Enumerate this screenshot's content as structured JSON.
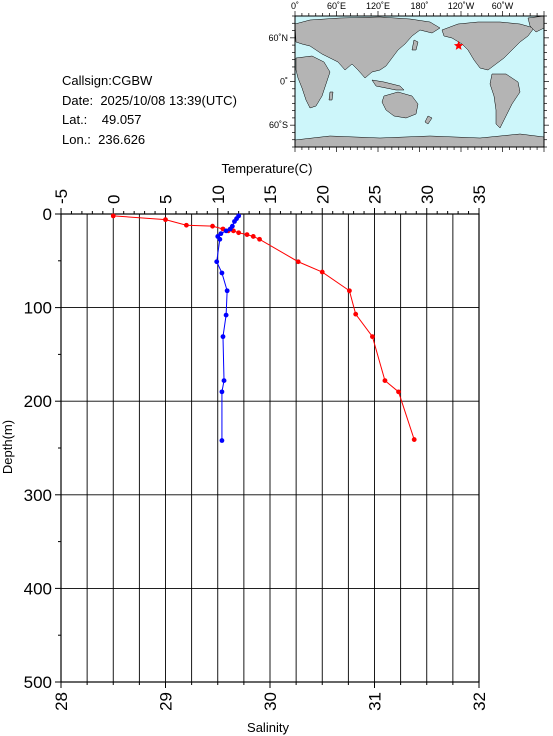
{
  "info": {
    "callsign": "Callsign:CGBW",
    "date_label": "Date:",
    "date_value": "2025/10/08 13:39(UTC)",
    "lat_label": "Lat.:",
    "lat_value": "49.057",
    "lon_label": "Lon.:",
    "lon_value": "236.626"
  },
  "map": {
    "top_ticks": [
      "0˚",
      "60˚E",
      "120˚E",
      "180˚",
      "120˚W",
      "60˚W"
    ],
    "left_ticks": [
      "60˚N",
      "0˚",
      "60˚S"
    ],
    "ocean_color": "#cdf6fa",
    "land_color": "#b4b4b4",
    "marker_color": "#ff0000",
    "marker_lon": 236.626,
    "marker_lat": 49.057
  },
  "chart_data": {
    "type": "line",
    "ylabel": "Depth(m)",
    "top_axis_label": "Temperature(C)",
    "bottom_axis_label": "Salinity",
    "ylim": [
      0,
      500
    ],
    "y_reversed": true,
    "temperature_lim": [
      -5,
      35
    ],
    "salinity_lim": [
      28,
      32
    ],
    "y_ticks": [
      0,
      100,
      200,
      300,
      400,
      500
    ],
    "temperature_ticks": [
      -5,
      0,
      5,
      10,
      15,
      20,
      25,
      30,
      35
    ],
    "salinity_ticks": [
      28,
      29,
      30,
      31,
      32
    ],
    "grid": true,
    "series": [
      {
        "axis": "temperature",
        "color": "#ff0000",
        "points": [
          [
            0,
            2
          ],
          [
            5,
            6
          ],
          [
            7,
            12
          ],
          [
            9.5,
            13
          ],
          [
            10.5,
            16
          ],
          [
            11,
            18
          ],
          [
            11.5,
            18
          ],
          [
            12,
            20
          ],
          [
            12.8,
            22
          ],
          [
            13.4,
            24
          ],
          [
            14,
            27
          ],
          [
            17.7,
            51
          ],
          [
            20,
            62
          ],
          [
            22.6,
            82
          ],
          [
            23.2,
            107
          ],
          [
            24.8,
            131
          ],
          [
            26,
            178
          ],
          [
            27.3,
            190
          ],
          [
            28.8,
            241
          ]
        ]
      },
      {
        "axis": "salinity",
        "color": "#0000ff",
        "points": [
          [
            29.7,
            2
          ],
          [
            29.68,
            5
          ],
          [
            29.66,
            8
          ],
          [
            29.64,
            13
          ],
          [
            29.62,
            16
          ],
          [
            29.58,
            18
          ],
          [
            29.53,
            21
          ],
          [
            29.5,
            24
          ],
          [
            29.52,
            27
          ],
          [
            29.49,
            51
          ],
          [
            29.54,
            63
          ],
          [
            29.59,
            82
          ],
          [
            29.58,
            108
          ],
          [
            29.55,
            131
          ],
          [
            29.56,
            178
          ],
          [
            29.54,
            190
          ],
          [
            29.54,
            242
          ]
        ]
      }
    ]
  }
}
